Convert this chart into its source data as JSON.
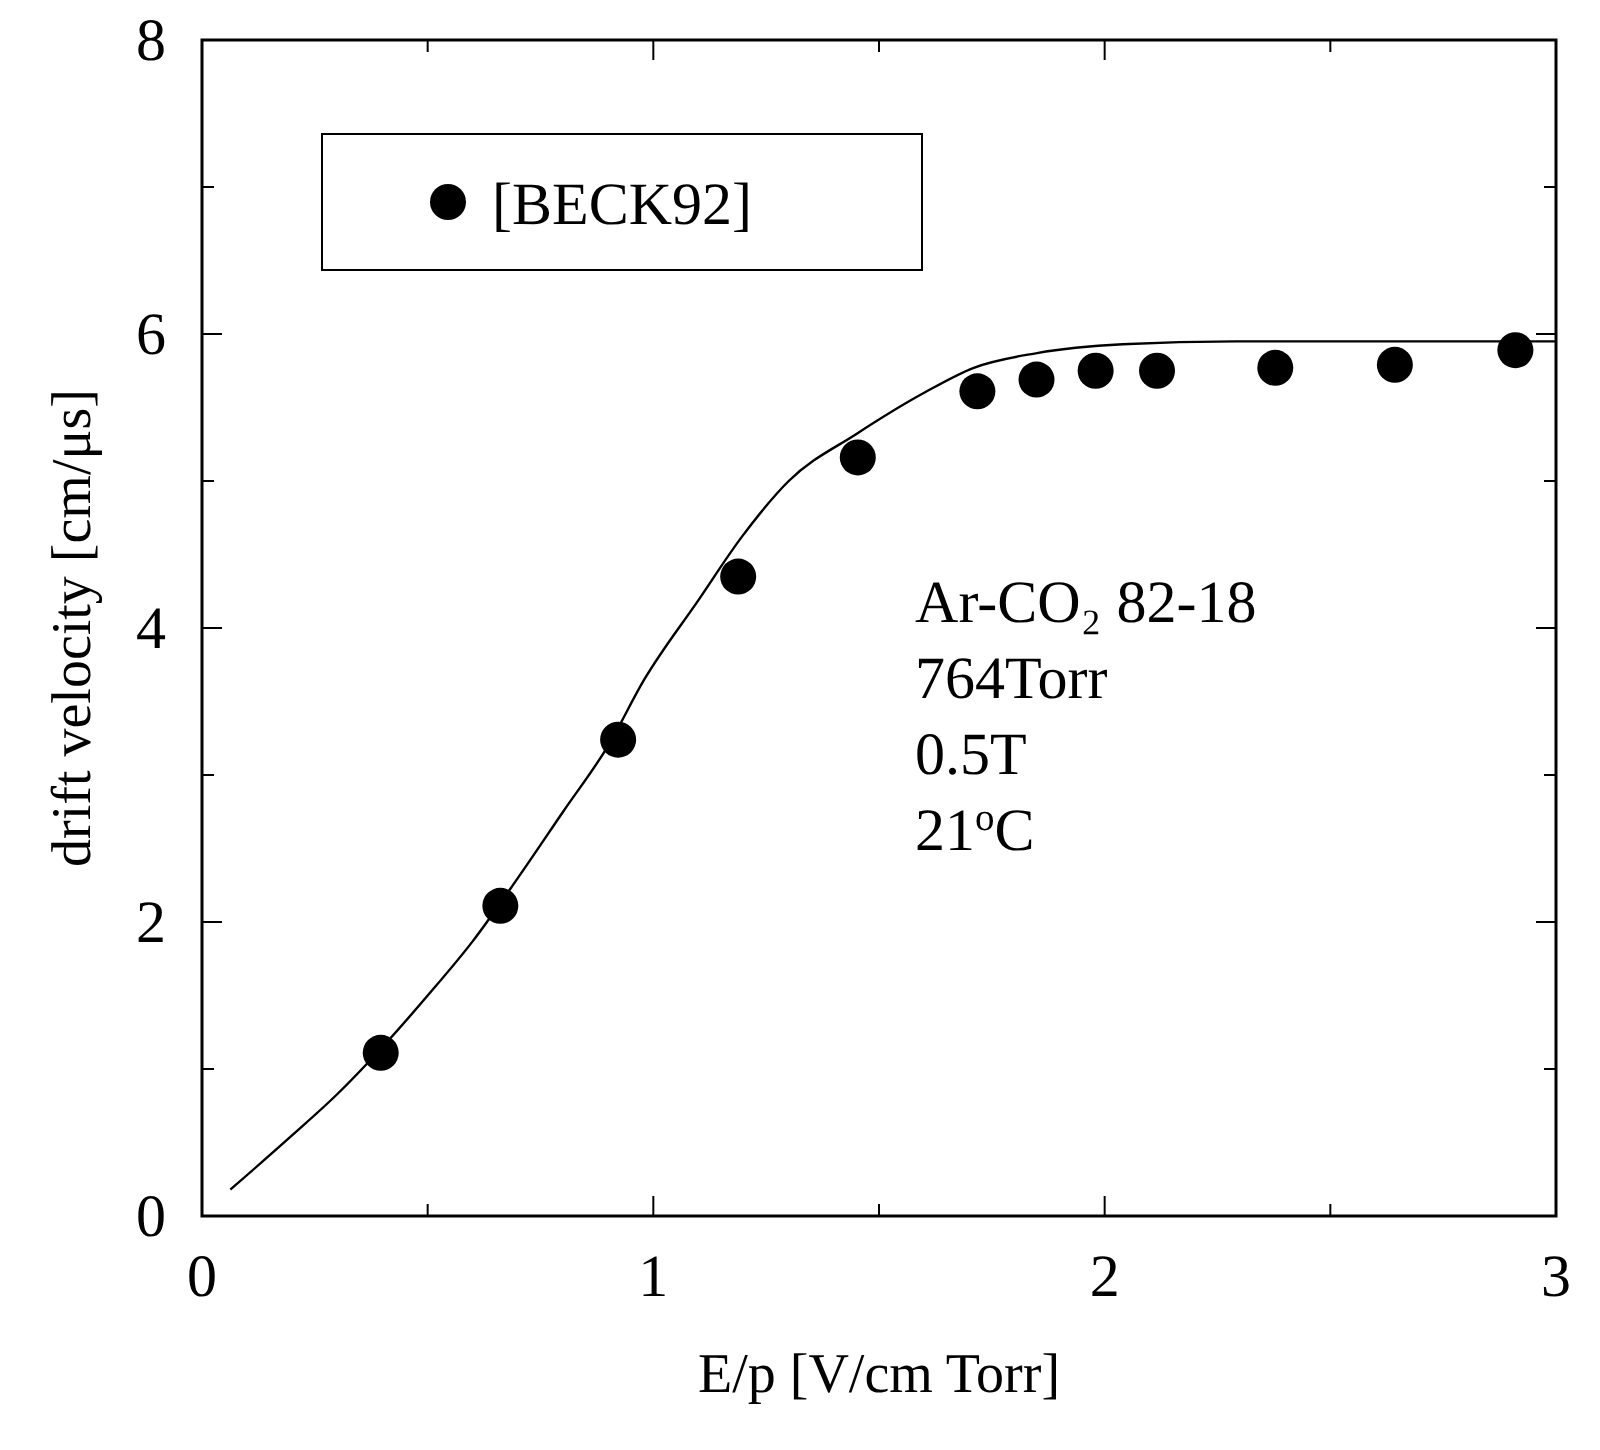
{
  "chart_data": {
    "type": "scatter",
    "xlabel": "E/p [V/cm Torr]",
    "ylabel": "drift velocity [cm/μs]",
    "xlim": [
      0,
      3
    ],
    "ylim": [
      0,
      8
    ],
    "xticks": [
      0,
      {
        "value": 0.5,
        "label": null
      },
      1,
      {
        "value": 1.5,
        "label": null
      },
      2,
      {
        "value": 2.5,
        "label": null
      },
      3
    ],
    "yticks": [
      0,
      {
        "value": 1,
        "label": null
      },
      2,
      {
        "value": 3,
        "label": null
      },
      4,
      {
        "value": 5,
        "label": null
      },
      6,
      {
        "value": 7,
        "label": null
      },
      8
    ],
    "legend": "top left",
    "grid": false,
    "annotations": [
      "Ar-CO₂ 82-18",
      "764Torr",
      "0.5T",
      "21$^{o}$C"
    ],
    "series": [
      {
        "name": "[BECK92]",
        "marker": "circle",
        "color": "#000000",
        "x": [
          0.396,
          0.661,
          0.922,
          1.188,
          1.453,
          1.718,
          1.849,
          1.98,
          2.116,
          2.378,
          2.643,
          2.91
        ],
        "values": [
          1.11,
          2.11,
          3.24,
          4.35,
          5.16,
          5.61,
          5.69,
          5.75,
          5.75,
          5.77,
          5.79,
          5.89
        ]
      },
      {
        "type": "line",
        "marker": "none",
        "line_style": "solid",
        "color": "#000000",
        "x": [
          0.063,
          0.2,
          0.3,
          0.4,
          0.5,
          0.6,
          0.7,
          0.8,
          0.9,
          0.98,
          1.1,
          1.196,
          1.3,
          1.45,
          1.6,
          1.71,
          1.85,
          2.04,
          2.29,
          2.6,
          3.0
        ],
        "values": [
          0.18,
          0.55,
          0.83,
          1.15,
          1.5,
          1.87,
          2.3,
          2.75,
          3.2,
          3.65,
          4.19,
          4.62,
          5.0,
          5.32,
          5.6,
          5.77,
          5.87,
          5.93,
          5.95,
          5.95,
          5.95
        ]
      }
    ]
  }
}
